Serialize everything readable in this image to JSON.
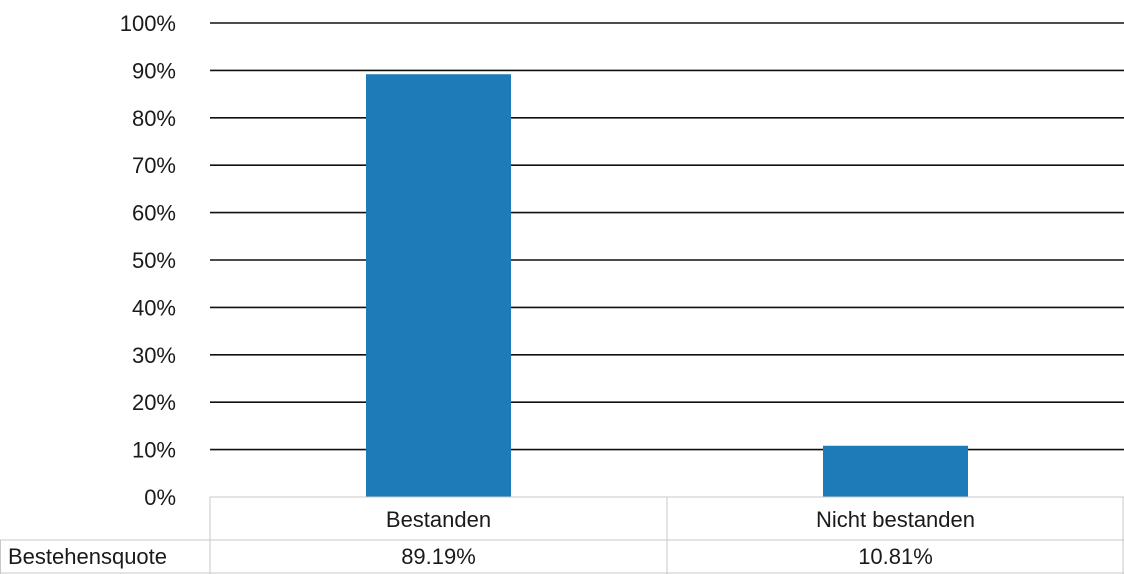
{
  "chart_data": {
    "type": "bar",
    "title": "",
    "xlabel": "",
    "ylabel": "",
    "categories": [
      "Bestanden",
      "Nicht bestanden"
    ],
    "series": [
      {
        "values": [
          89.19,
          10.81
        ]
      }
    ],
    "ylim": [
      0,
      100
    ],
    "yticks": [
      "0%",
      "10%",
      "20%",
      "30%",
      "40%",
      "50%",
      "60%",
      "70%",
      "80%",
      "90%",
      "100%"
    ],
    "grid": true,
    "legend": "none",
    "bar_color": "#1f7ab8",
    "data_table": {
      "row_label": "Bestehensquote",
      "values": [
        "89.19%",
        "10.81%"
      ]
    }
  }
}
